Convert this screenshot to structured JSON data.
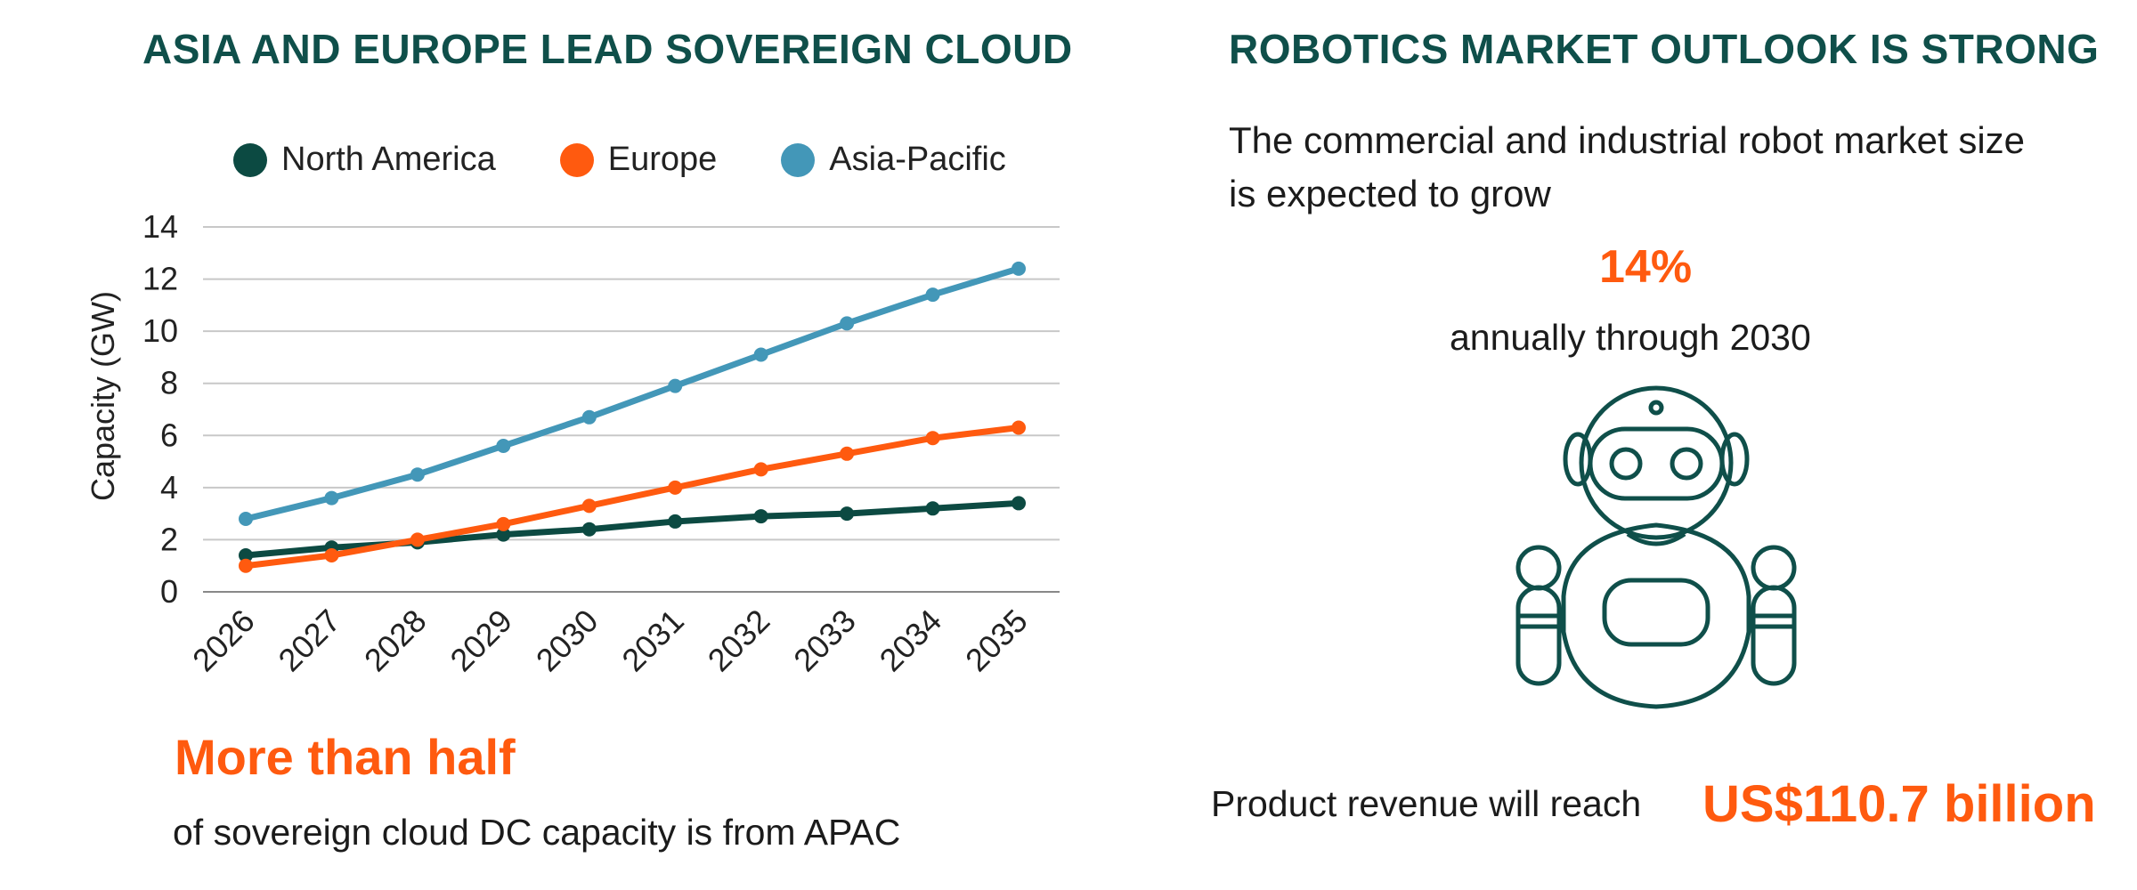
{
  "left_panel": {
    "title": "ASIA AND EUROPE LEAD SOVEREIGN CLOUD",
    "highlight": "More than half",
    "caption": "of sovereign cloud DC capacity is from APAC"
  },
  "right_panel": {
    "title": "ROBOTICS MARKET OUTLOOK IS STRONG",
    "description": "The commercial and industrial robot market size is expected to grow",
    "growth_rate": "14%",
    "growth_period": "annually through 2030",
    "revenue_label": "Product revenue will reach",
    "revenue_value": "US$110.7 billion",
    "robot_icon": "robot-icon"
  },
  "colors": {
    "title": "#0f4f4a",
    "accent": "#ff5a0f",
    "north_america": "#0c4a42",
    "europe": "#ff5a0f",
    "asia_pacific": "#4397b8",
    "grid": "#c8c8c8"
  },
  "chart_data": {
    "type": "line",
    "title": "",
    "xlabel": "",
    "ylabel": "Capacity (GW)",
    "ylim": [
      0,
      14
    ],
    "yticks": [
      "0",
      "2",
      "4",
      "6",
      "8",
      "10",
      "12",
      "14"
    ],
    "categories": [
      "2026",
      "2027",
      "2028",
      "2029",
      "2030",
      "2031",
      "2032",
      "2033",
      "2034",
      "2035"
    ],
    "legend_position": "top",
    "series": [
      {
        "name": "North America",
        "color": "#0c4a42",
        "values": [
          1.4,
          1.7,
          1.9,
          2.2,
          2.4,
          2.7,
          2.9,
          3.0,
          3.2,
          3.4
        ]
      },
      {
        "name": "Europe",
        "color": "#ff5a0f",
        "values": [
          1.0,
          1.4,
          2.0,
          2.6,
          3.3,
          4.0,
          4.7,
          5.3,
          5.9,
          6.3
        ]
      },
      {
        "name": "Asia-Pacific",
        "color": "#4397b8",
        "values": [
          2.8,
          3.6,
          4.5,
          5.6,
          6.7,
          7.9,
          9.1,
          10.3,
          11.4,
          12.4
        ]
      }
    ]
  }
}
